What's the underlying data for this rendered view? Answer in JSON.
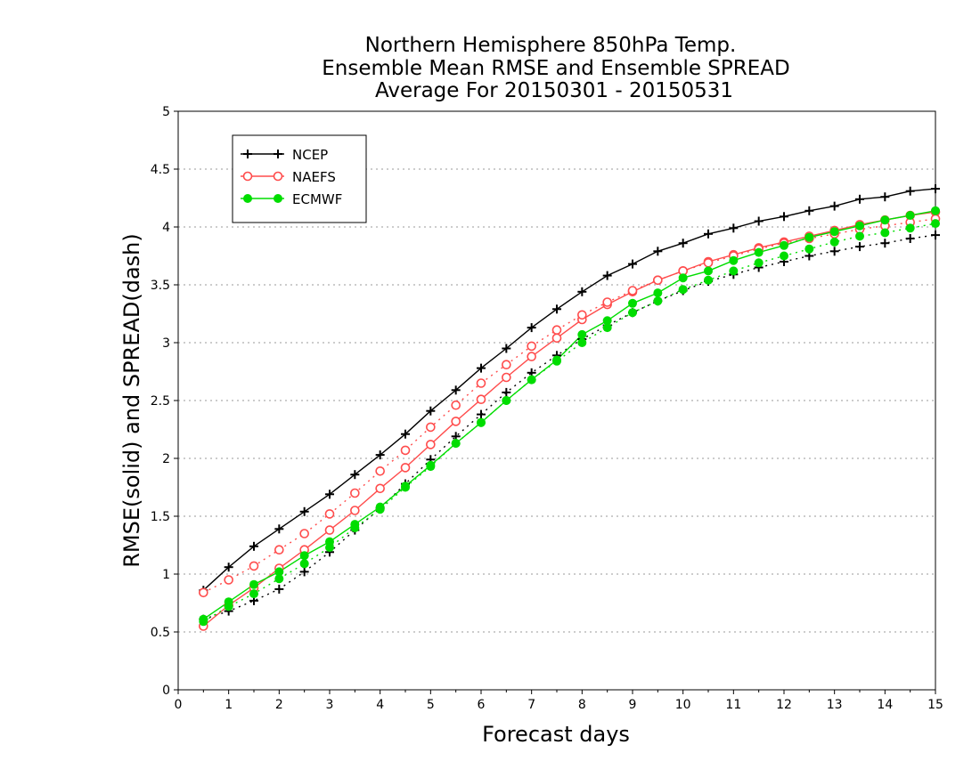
{
  "chart_data": {
    "type": "line",
    "title_lines": [
      "Northern Hemisphere 850hPa Temp.",
      "Ensemble Mean RMSE and Ensemble SPREAD",
      "Average For 20150301 - 20150531"
    ],
    "xlabel": "Forecast days",
    "ylabel": "RMSE(solid) and SPREAD(dash)",
    "xlim": [
      0,
      15
    ],
    "ylim": [
      0,
      5
    ],
    "x_ticks": [
      "0",
      "1",
      "2",
      "3",
      "4",
      "5",
      "6",
      "7",
      "8",
      "9",
      "10",
      "11",
      "12",
      "13",
      "14",
      "15"
    ],
    "y_ticks": [
      "0",
      "0.5",
      "1",
      "1.5",
      "2",
      "2.5",
      "3",
      "3.5",
      "4",
      "4.5",
      "5"
    ],
    "grid": "dotted horizontal",
    "legend_position": "top-left",
    "x": [
      0.5,
      1,
      1.5,
      2,
      2.5,
      3,
      3.5,
      4,
      4.5,
      5,
      5.5,
      6,
      6.5,
      7,
      7.5,
      8,
      8.5,
      9,
      9.5,
      10,
      10.5,
      11,
      11.5,
      12,
      12.5,
      13,
      13.5,
      14,
      14.5,
      15
    ],
    "series": [
      {
        "name": "NCEP",
        "color": "#000000",
        "marker": "plus",
        "rmse": [
          0.86,
          1.06,
          1.24,
          1.39,
          1.54,
          1.69,
          1.86,
          2.03,
          2.21,
          2.41,
          2.59,
          2.78,
          2.95,
          3.13,
          3.29,
          3.44,
          3.58,
          3.68,
          3.79,
          3.86,
          3.94,
          3.99,
          4.05,
          4.09,
          4.14,
          4.18,
          4.24,
          4.26,
          4.31,
          4.33
        ],
        "spread": [
          0.61,
          0.68,
          0.77,
          0.87,
          1.02,
          1.19,
          1.38,
          1.57,
          1.78,
          1.99,
          2.19,
          2.38,
          2.57,
          2.74,
          2.89,
          3.03,
          3.15,
          3.26,
          3.36,
          3.45,
          3.53,
          3.59,
          3.65,
          3.7,
          3.75,
          3.79,
          3.83,
          3.86,
          3.9,
          3.93
        ]
      },
      {
        "name": "NAEFS",
        "color": "#ff4c4c",
        "marker": "open-circle",
        "rmse": [
          0.55,
          0.73,
          0.88,
          1.05,
          1.21,
          1.38,
          1.55,
          1.74,
          1.92,
          2.12,
          2.32,
          2.51,
          2.7,
          2.88,
          3.04,
          3.2,
          3.33,
          3.44,
          3.54,
          3.62,
          3.7,
          3.76,
          3.82,
          3.87,
          3.92,
          3.97,
          4.02,
          4.06,
          4.1,
          4.13
        ],
        "spread": [
          0.84,
          0.95,
          1.07,
          1.21,
          1.35,
          1.52,
          1.7,
          1.89,
          2.07,
          2.27,
          2.46,
          2.65,
          2.81,
          2.97,
          3.11,
          3.24,
          3.35,
          3.45,
          3.54,
          3.62,
          3.69,
          3.75,
          3.81,
          3.86,
          3.9,
          3.94,
          3.98,
          4.01,
          4.04,
          4.07
        ]
      },
      {
        "name": "ECMWF",
        "color": "#00dd00",
        "marker": "filled-circle",
        "rmse": [
          0.61,
          0.76,
          0.91,
          1.02,
          1.16,
          1.28,
          1.43,
          1.58,
          1.76,
          1.94,
          2.13,
          2.31,
          2.5,
          2.68,
          2.85,
          3.07,
          3.19,
          3.34,
          3.43,
          3.56,
          3.62,
          3.71,
          3.78,
          3.84,
          3.91,
          3.96,
          4.01,
          4.06,
          4.1,
          4.14
        ],
        "spread": [
          0.59,
          0.72,
          0.83,
          0.96,
          1.09,
          1.23,
          1.4,
          1.56,
          1.75,
          1.93,
          2.13,
          2.31,
          2.5,
          2.68,
          2.84,
          3.0,
          3.13,
          3.26,
          3.36,
          3.46,
          3.54,
          3.62,
          3.69,
          3.75,
          3.81,
          3.87,
          3.92,
          3.95,
          3.99,
          4.03
        ]
      }
    ]
  }
}
